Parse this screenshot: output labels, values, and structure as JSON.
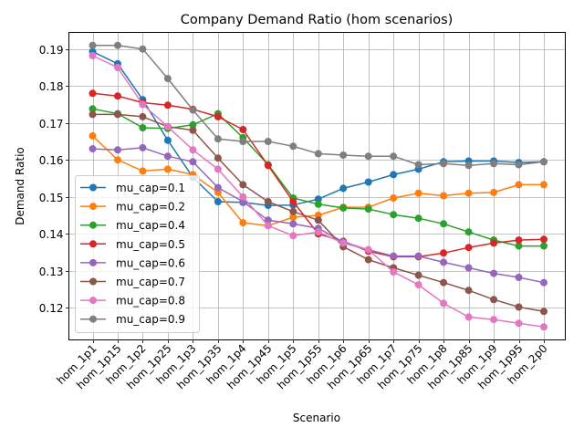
{
  "chart_data": {
    "type": "line",
    "title": "Company Demand Ratio (hom scenarios)",
    "xlabel": "Scenario",
    "ylabel": "Demand Ratio",
    "ylim": [
      0.1113,
      0.1945
    ],
    "yticks": [
      0.12,
      0.13,
      0.14,
      0.15,
      0.16,
      0.17,
      0.18,
      0.19
    ],
    "ytick_labels": [
      "0.12",
      "0.13",
      "0.14",
      "0.15",
      "0.16",
      "0.17",
      "0.18",
      "0.19"
    ],
    "grid": true,
    "legend_position": "lower-left",
    "categories": [
      "hom_1p1",
      "hom_1p15",
      "hom_1p2",
      "hom_1p25",
      "hom_1p3",
      "hom_1p35",
      "hom_1p4",
      "hom_1p45",
      "hom_1p5",
      "hom_1p55",
      "hom_1p6",
      "hom_1p65",
      "hom_1p7",
      "hom_1p75",
      "hom_1p8",
      "hom_1p85",
      "hom_1p9",
      "hom_1p95",
      "hom_2p0"
    ],
    "series": [
      {
        "name": "mu_cap=0.1",
        "color": "#1f77b4",
        "values": [
          0.1893,
          0.186,
          0.1763,
          0.1653,
          0.1553,
          0.1487,
          0.1485,
          0.1477,
          0.1478,
          0.1494,
          0.1523,
          0.154,
          0.156,
          0.1575,
          0.1595,
          0.1597,
          0.1597,
          0.1593,
          0.1595
        ]
      },
      {
        "name": "mu_cap=0.2",
        "color": "#ff7f0e",
        "values": [
          0.1665,
          0.16,
          0.157,
          0.1575,
          0.156,
          0.1512,
          0.143,
          0.1422,
          0.1445,
          0.145,
          0.1472,
          0.1472,
          0.1497,
          0.151,
          0.1503,
          0.151,
          0.1512,
          0.1533,
          0.1533
        ]
      },
      {
        "name": "mu_cap=0.4",
        "color": "#2ca02c",
        "values": [
          0.1738,
          0.1725,
          0.1687,
          0.1685,
          0.1695,
          0.1725,
          0.166,
          0.1587,
          0.1497,
          0.148,
          0.147,
          0.1467,
          0.1452,
          0.1442,
          0.1427,
          0.1405,
          0.1383,
          0.1367,
          0.1367
        ]
      },
      {
        "name": "mu_cap=0.5",
        "color": "#d62728",
        "values": [
          0.178,
          0.1773,
          0.1755,
          0.1748,
          0.1737,
          0.1717,
          0.1682,
          0.1585,
          0.1487,
          0.14,
          0.138,
          0.1353,
          0.1338,
          0.1338,
          0.1348,
          0.1363,
          0.1375,
          0.1383,
          0.1385
        ]
      },
      {
        "name": "mu_cap=0.6",
        "color": "#9467bd",
        "values": [
          0.163,
          0.1627,
          0.1633,
          0.161,
          0.1595,
          0.1525,
          0.1487,
          0.1437,
          0.1427,
          0.1415,
          0.1378,
          0.1357,
          0.134,
          0.134,
          0.1323,
          0.1308,
          0.1293,
          0.1282,
          0.1268
        ]
      },
      {
        "name": "mu_cap=0.7",
        "color": "#8c564b",
        "values": [
          0.1723,
          0.1723,
          0.1717,
          0.169,
          0.168,
          0.1605,
          0.1533,
          0.1487,
          0.146,
          0.1437,
          0.1365,
          0.133,
          0.1308,
          0.1288,
          0.1268,
          0.1247,
          0.1222,
          0.1202,
          0.119
        ]
      },
      {
        "name": "mu_cap=0.8",
        "color": "#e377c2",
        "values": [
          0.1882,
          0.185,
          0.175,
          0.169,
          0.1627,
          0.1575,
          0.15,
          0.1422,
          0.1395,
          0.1405,
          0.1375,
          0.1357,
          0.1297,
          0.1262,
          0.1212,
          0.1175,
          0.1168,
          0.1158,
          0.1148
        ]
      },
      {
        "name": "mu_cap=0.9",
        "color": "#7f7f7f",
        "values": [
          0.191,
          0.191,
          0.19,
          0.182,
          0.1735,
          0.1657,
          0.165,
          0.165,
          0.1637,
          0.1617,
          0.1613,
          0.161,
          0.161,
          0.1587,
          0.159,
          0.1585,
          0.159,
          0.1587,
          0.1595
        ]
      }
    ]
  }
}
